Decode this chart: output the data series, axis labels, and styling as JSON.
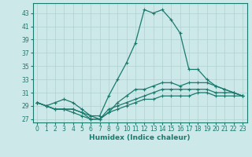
{
  "title": "",
  "xlabel": "Humidex (Indice chaleur)",
  "bg_color": "#cce8e8",
  "line_color": "#1a7a6e",
  "grid_color": "#b0d0d0",
  "ylim": [
    26.5,
    44.5
  ],
  "xlim": [
    -0.5,
    23.5
  ],
  "yticks": [
    27,
    29,
    31,
    33,
    35,
    37,
    39,
    41,
    43
  ],
  "xticks": [
    0,
    1,
    2,
    3,
    4,
    5,
    6,
    7,
    8,
    9,
    10,
    11,
    12,
    13,
    14,
    15,
    16,
    17,
    18,
    19,
    20,
    21,
    22,
    23
  ],
  "lines": [
    [
      29.5,
      29.0,
      29.5,
      30.0,
      29.5,
      28.5,
      27.5,
      27.5,
      30.5,
      33.0,
      35.5,
      38.5,
      43.5,
      43.0,
      43.5,
      42.0,
      40.0,
      34.5,
      34.5,
      33.0,
      32.0,
      31.5,
      31.0,
      30.5
    ],
    [
      29.5,
      29.0,
      28.5,
      28.5,
      28.5,
      28.0,
      27.0,
      27.0,
      28.0,
      29.5,
      30.5,
      31.5,
      31.5,
      32.0,
      32.5,
      32.5,
      32.0,
      32.5,
      32.5,
      32.5,
      32.0,
      31.5,
      31.0,
      30.5
    ],
    [
      29.5,
      29.0,
      28.5,
      28.5,
      28.5,
      28.0,
      27.5,
      27.0,
      28.5,
      29.0,
      29.5,
      30.0,
      30.5,
      31.0,
      31.5,
      31.5,
      31.5,
      31.5,
      31.5,
      31.5,
      31.0,
      31.0,
      31.0,
      30.5
    ],
    [
      29.5,
      29.0,
      28.5,
      28.5,
      28.0,
      27.5,
      27.0,
      27.0,
      28.0,
      28.5,
      29.0,
      29.5,
      30.0,
      30.0,
      30.5,
      30.5,
      30.5,
      30.5,
      31.0,
      31.0,
      30.5,
      30.5,
      30.5,
      30.5
    ]
  ],
  "tick_fontsize": 5.5,
  "xlabel_fontsize": 6.5,
  "linewidth": 0.9,
  "markersize": 3.5,
  "markeredgewidth": 0.8
}
